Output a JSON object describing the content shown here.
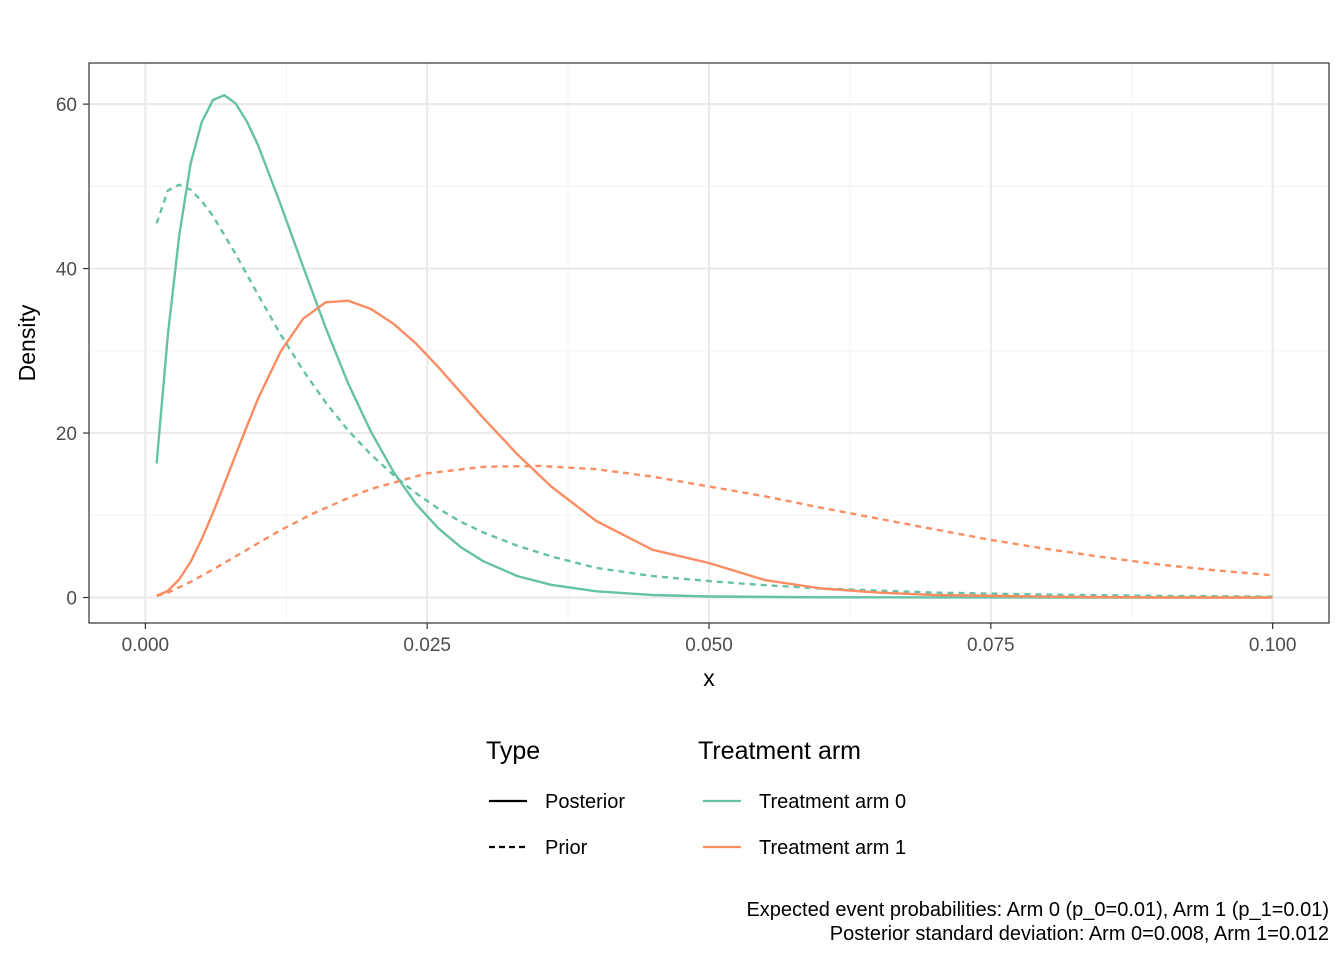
{
  "chart_data": {
    "type": "line",
    "xlabel": "x",
    "ylabel": "Density",
    "xlim": [
      -0.005,
      0.105
    ],
    "ylim": [
      -3.1,
      65
    ],
    "x_ticks": [
      0.0,
      0.025,
      0.05,
      0.075,
      0.1
    ],
    "x_tick_labels": [
      "0.000",
      "0.025",
      "0.050",
      "0.075",
      "0.100"
    ],
    "y_ticks": [
      0,
      20,
      40,
      60
    ],
    "y_tick_labels": [
      "0",
      "20",
      "40",
      "60"
    ],
    "grid": true,
    "legend_placement": "bottom",
    "legend": {
      "type_title": "Type",
      "type_entries": [
        {
          "label": "Posterior",
          "dash": "solid"
        },
        {
          "label": "Prior",
          "dash": "dashed"
        }
      ],
      "arm_title": "Treatment arm",
      "arm_entries": [
        {
          "label": "Treatment arm 0",
          "color": "#66c2a5"
        },
        {
          "label": "Treatment arm 1",
          "color": "#fc8d62"
        }
      ]
    },
    "caption_lines": [
      "Expected event probabilities: Arm 0 (p_0=0.01), Arm 1 (p_1=0.01)",
      "Posterior standard deviation: Arm 0=0.008, Arm 1=0.012"
    ],
    "series": [
      {
        "arm": "Treatment arm 0",
        "type": "Posterior",
        "color": "#66c2a5",
        "dash": "solid",
        "x": [
          0.001,
          0.002,
          0.003,
          0.004,
          0.005,
          0.006,
          0.007,
          0.008,
          0.009,
          0.01,
          0.012,
          0.014,
          0.016,
          0.018,
          0.02,
          0.022,
          0.024,
          0.026,
          0.028,
          0.03,
          0.033,
          0.036,
          0.04,
          0.045,
          0.05,
          0.06,
          0.07,
          0.08,
          0.09,
          0.1
        ],
        "y": [
          16.3,
          32.0,
          44.0,
          52.7,
          57.8,
          60.5,
          61.1,
          60.1,
          57.9,
          55.0,
          47.8,
          40.2,
          32.8,
          26.0,
          20.2,
          15.3,
          11.4,
          8.4,
          6.1,
          4.4,
          2.6,
          1.55,
          0.75,
          0.3,
          0.12,
          0.03,
          0.01,
          0.0,
          0.0,
          0.0
        ]
      },
      {
        "arm": "Treatment arm 0",
        "type": "Prior",
        "color": "#66c2a5",
        "dash": "dashed",
        "x": [
          0.001,
          0.002,
          0.003,
          0.004,
          0.005,
          0.006,
          0.008,
          0.01,
          0.012,
          0.014,
          0.016,
          0.018,
          0.02,
          0.022,
          0.024,
          0.026,
          0.028,
          0.03,
          0.033,
          0.036,
          0.04,
          0.045,
          0.05,
          0.055,
          0.06,
          0.07,
          0.08,
          0.09,
          0.1
        ],
        "y": [
          45.5,
          49.5,
          50.2,
          49.6,
          48.2,
          46.4,
          41.8,
          36.8,
          32.0,
          27.6,
          23.7,
          20.3,
          17.4,
          14.9,
          12.7,
          10.8,
          9.2,
          7.9,
          6.3,
          5.0,
          3.6,
          2.6,
          2.0,
          1.5,
          1.1,
          0.6,
          0.35,
          0.2,
          0.1
        ]
      },
      {
        "arm": "Treatment arm 1",
        "type": "Posterior",
        "color": "#fc8d62",
        "dash": "solid",
        "x": [
          0.001,
          0.002,
          0.003,
          0.004,
          0.005,
          0.006,
          0.007,
          0.008,
          0.009,
          0.01,
          0.012,
          0.014,
          0.016,
          0.018,
          0.02,
          0.022,
          0.024,
          0.026,
          0.028,
          0.03,
          0.033,
          0.036,
          0.04,
          0.045,
          0.05,
          0.055,
          0.06,
          0.065,
          0.07,
          0.08,
          0.09,
          0.1
        ],
        "y": [
          0.2,
          0.8,
          2.2,
          4.3,
          7.1,
          10.3,
          13.8,
          17.3,
          20.8,
          24.2,
          29.9,
          33.9,
          35.9,
          36.1,
          35.1,
          33.3,
          30.9,
          28.0,
          24.9,
          21.8,
          17.4,
          13.5,
          9.3,
          5.8,
          4.2,
          2.1,
          1.1,
          0.6,
          0.3,
          0.1,
          0.0,
          0.0
        ]
      },
      {
        "arm": "Treatment arm 1",
        "type": "Prior",
        "color": "#fc8d62",
        "dash": "dashed",
        "x": [
          0.001,
          0.002,
          0.004,
          0.006,
          0.008,
          0.01,
          0.012,
          0.015,
          0.018,
          0.02,
          0.025,
          0.03,
          0.035,
          0.04,
          0.045,
          0.05,
          0.055,
          0.06,
          0.065,
          0.07,
          0.075,
          0.08,
          0.085,
          0.09,
          0.095,
          0.1
        ],
        "y": [
          0.2,
          0.6,
          1.9,
          3.4,
          5.0,
          6.6,
          8.2,
          10.3,
          12.1,
          13.2,
          15.1,
          15.9,
          16.0,
          15.6,
          14.7,
          13.5,
          12.3,
          10.9,
          9.6,
          8.3,
          7.0,
          5.9,
          4.9,
          4.0,
          3.3,
          2.7
        ]
      }
    ]
  }
}
